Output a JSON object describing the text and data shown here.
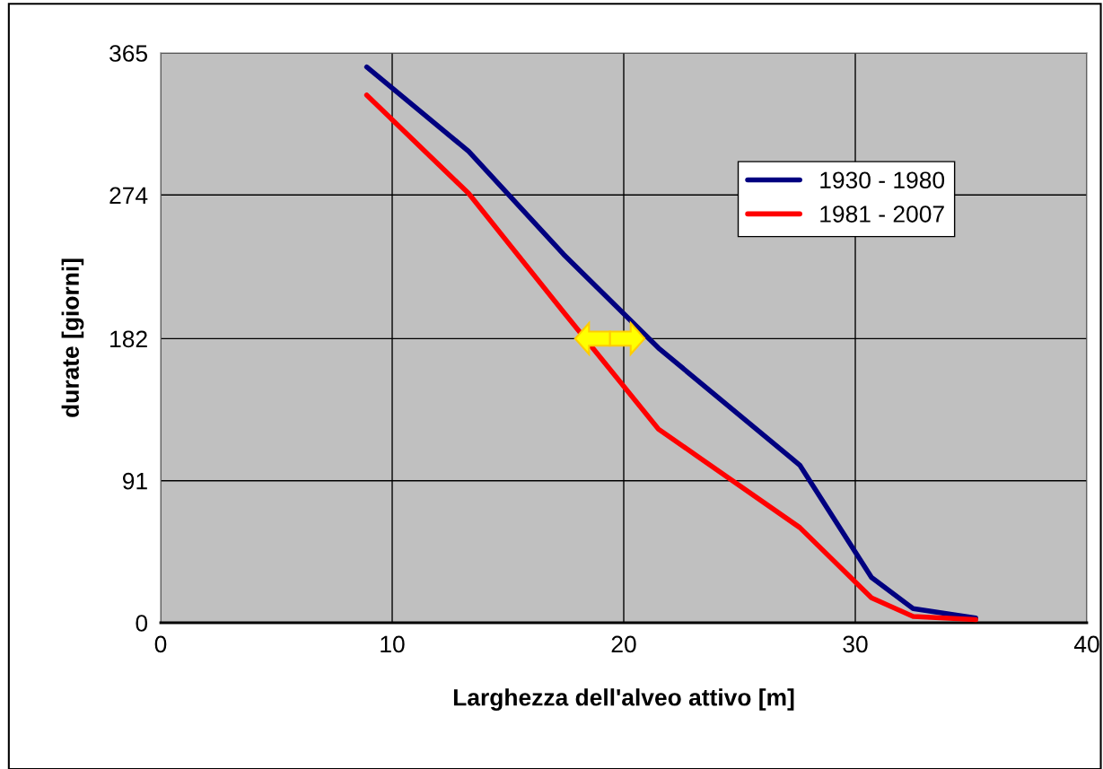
{
  "chart_data": {
    "type": "line",
    "xlabel": "Larghezza dell'alveo attivo [m]",
    "ylabel": "durate [giorni]",
    "xlim": [
      0,
      40
    ],
    "xticks": [
      0,
      10,
      20,
      30,
      40
    ],
    "ylim": [
      0,
      365
    ],
    "yticks": [
      0,
      91,
      182,
      274,
      365
    ],
    "grid": true,
    "legend": "top right",
    "marker": "none",
    "line_style": "solid",
    "series": [
      {
        "name": "1930 - 1980",
        "color": "#000080",
        "x": [
          8.9,
          13.3,
          17.4,
          21.5,
          27.6,
          30.7,
          32.5,
          35.2
        ],
        "values": [
          356,
          302,
          236,
          176,
          101,
          29,
          9,
          3
        ]
      },
      {
        "name": "1981 - 2007",
        "color": "#ff0000",
        "x": [
          8.9,
          13.3,
          17.4,
          21.5,
          27.6,
          30.7,
          32.5,
          35.2
        ],
        "values": [
          338,
          275,
          199,
          124,
          61,
          16,
          4,
          2
        ]
      }
    ]
  }
}
